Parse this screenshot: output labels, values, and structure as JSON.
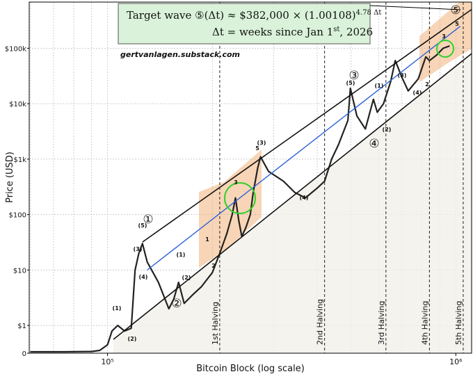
{
  "chart_data": {
    "type": "line",
    "xlabel": "Bitcoin Block (log scale)",
    "ylabel": "Price (USD)",
    "watermark": "gertvanlagen.substack.com",
    "xscale": "log",
    "yscale": "symlog",
    "ylinthresh": 1,
    "xlim": [
      59600,
      1110000
    ],
    "ylim": [
      0,
      680000
    ],
    "xticks": [
      {
        "value": 100000,
        "label": "10⁵"
      },
      {
        "value": 1000000,
        "label": "10⁶"
      }
    ],
    "yticks": [
      0,
      {
        "value": 1,
        "label": "$1"
      },
      {
        "value": 10,
        "label": "$10"
      },
      {
        "value": 100,
        "label": "$100"
      },
      {
        "value": 1000,
        "label": "$1k"
      },
      {
        "value": 10000,
        "label": "$10k"
      },
      {
        "value": 100000,
        "label": "$100k"
      }
    ],
    "grid": true,
    "series": [
      {
        "name": "Price",
        "color": "#222222",
        "width": 2.2,
        "x": [
          60000,
          75000,
          90000,
          95000,
          100000,
          103000,
          107000,
          112000,
          117000,
          120000,
          123000,
          126000,
          130000,
          140000,
          150000,
          155000,
          160000,
          166000,
          175000,
          186000,
          200000,
          210000,
          220000,
          228000,
          233000,
          238000,
          243000,
          250000,
          257000,
          262000,
          270000,
          275000,
          290000,
          320000,
          345000,
          370000,
          400000,
          420000,
          440000,
          460000,
          490000,
          498000,
          520000,
          550000,
          580000,
          595000,
          620000,
          650000,
          670000,
          700000,
          730000,
          780000,
          820000,
          840000,
          880000,
          920000,
          960000
        ],
        "values": [
          0.05,
          0.05,
          0.06,
          0.1,
          0.3,
          0.8,
          1.0,
          0.8,
          0.9,
          10,
          20,
          30,
          14,
          6,
          2,
          3,
          6,
          2.5,
          3.5,
          5,
          9,
          20,
          45,
          100,
          200,
          80,
          40,
          60,
          100,
          250,
          700,
          1100,
          600,
          400,
          250,
          200,
          300,
          400,
          1000,
          1800,
          5000,
          19000,
          6000,
          3500,
          12000,
          7000,
          10000,
          25000,
          60000,
          30000,
          17000,
          28000,
          70000,
          60000,
          75000,
          100000,
          110000
        ]
      },
      {
        "name": "Upper channel",
        "color": "#111111",
        "width": 1.6,
        "x": [
          126000,
          1110000
        ],
        "values": [
          32,
          500000
        ]
      },
      {
        "name": "Lower channel",
        "color": "#111111",
        "width": 1.6,
        "x": [
          104000,
          1110000
        ],
        "values": [
          0.5,
          80000
        ]
      },
      {
        "name": "Trend",
        "color": "#2a62d8",
        "width": 1.4,
        "x": [
          130000,
          1030000
        ],
        "values": [
          10,
          250000
        ]
      }
    ],
    "halvings": {
      "x": [
        210000,
        420000,
        630000,
        840000,
        1050000
      ],
      "labels": [
        "1st Halving",
        "2nd Halving",
        "3rd Halving",
        "4th Halving",
        "5th Halving"
      ]
    },
    "formula": {
      "line1": "Target wave ⑤(Δt) ≈ $382,000 × (1.00108)",
      "exponent": "4.78 Δt",
      "line2": "Δt = weeks since Jan 1",
      "line2sup": "st",
      "line2end": ", 2026"
    },
    "wave_labels": [
      "(1)",
      "(2)",
      "(3)",
      "(4)",
      "(5)",
      "(1)",
      "(2)",
      "1",
      "2",
      "3",
      "5",
      "(3)",
      "(4)",
      "(5)",
      "(1)",
      "(2)",
      "(3)",
      "(4)",
      "2",
      "3",
      "5",
      "①",
      "②",
      "③",
      "④",
      "⑤"
    ]
  }
}
